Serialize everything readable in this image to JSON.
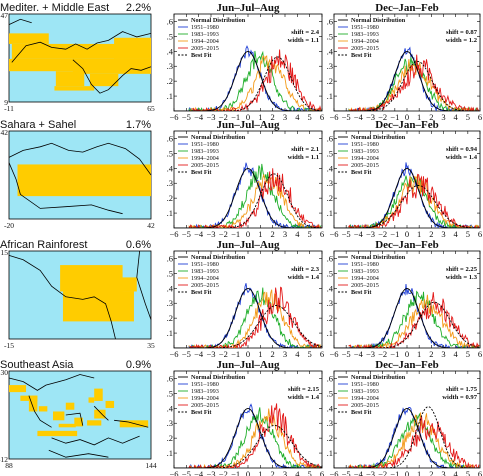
{
  "legend": [
    "Normal Distribution",
    "1951–1980",
    "1983–1993",
    "1994–2004",
    "2005–2015",
    "Best Fit"
  ],
  "colors": {
    "normal": "#000000",
    "p1": "#1f3fd6",
    "p2": "#1fae2a",
    "p3": "#f39a1a",
    "p4": "#e31a1a",
    "fit": "#000000",
    "land": "#ffcc00",
    "sea": "#9ee6f5"
  },
  "season_labels": [
    "Jun–Jul–Aug",
    "Dec–Jan–Feb"
  ],
  "regions": [
    {
      "name": "Mediter. + Middle East",
      "pct": "2.2%",
      "map": {
        "lat_top": "47",
        "lat_bot": "9",
        "lon_left": "-11",
        "lon_right": "65"
      },
      "jja": {
        "shift_label": "shift = 2.4",
        "width_label": "width = 1.1"
      },
      "djf": {
        "shift_label": "shift = 0.87",
        "width_label": "width = 1.2"
      }
    },
    {
      "name": "Sahara + Sahel",
      "pct": "1.7%",
      "map": {
        "lat_top": "42",
        "lat_bot": "",
        "lon_left": "-20",
        "lon_right": "42"
      },
      "jja": {
        "shift_label": "shift = 2.1",
        "width_label": "width = 1.1"
      },
      "djf": {
        "shift_label": "shift = 0.94",
        "width_label": "width = 1.4"
      }
    },
    {
      "name": "African Rainforest",
      "pct": "0.6%",
      "map": {
        "lat_top": "15",
        "lat_bot": "",
        "lon_left": "-15",
        "lon_right": "35"
      },
      "jja": {
        "shift_label": "shift = 2.3",
        "width_label": "width = 1.4"
      },
      "djf": {
        "shift_label": "shift = 2.25",
        "width_label": "width = 1.3"
      }
    },
    {
      "name": "Southeast Asia",
      "pct": "0.9%",
      "map": {
        "lat_top": "30",
        "lat_bot": "-12",
        "lon_left": "88",
        "lon_right": "144"
      },
      "jja": {
        "shift_label": "shift = 2.15",
        "width_label": "width = 1.4"
      },
      "djf": {
        "shift_label": "shift = 1.75",
        "width_label": "width = 0.97"
      }
    }
  ],
  "chart_data": {
    "type": "line",
    "xlim": [
      -6,
      6
    ],
    "ylim": [
      0,
      0.65
    ],
    "xticks": [
      -6,
      -5,
      -4,
      -3,
      -2,
      -1,
      0,
      1,
      2,
      3,
      4,
      5,
      6
    ],
    "yticks": [
      ".1",
      ".2",
      ".3",
      ".4",
      ".5",
      ".6"
    ],
    "ytick_values": [
      0.1,
      0.2,
      0.3,
      0.4,
      0.5,
      0.6
    ],
    "periods": [
      "1951–1980",
      "1983–1993",
      "1994–2004",
      "2005–2015"
    ],
    "panels": [
      {
        "region": "Mediter. + Middle East",
        "season": "Jun–Jul–Aug",
        "shift": 2.4,
        "width": 1.1,
        "period_means": [
          0.0,
          0.9,
          1.8,
          2.6
        ]
      },
      {
        "region": "Mediter. + Middle East",
        "season": "Dec–Jan–Feb",
        "shift": 0.87,
        "width": 1.2,
        "period_means": [
          0.0,
          0.3,
          0.6,
          1.0
        ]
      },
      {
        "region": "Sahara + Sahel",
        "season": "Jun–Jul–Aug",
        "shift": 2.1,
        "width": 1.1,
        "period_means": [
          0.0,
          1.0,
          1.6,
          2.3
        ]
      },
      {
        "region": "Sahara + Sahel",
        "season": "Dec–Jan–Feb",
        "shift": 0.94,
        "width": 1.4,
        "period_means": [
          0.0,
          0.4,
          0.7,
          1.1
        ]
      },
      {
        "region": "African Rainforest",
        "season": "Jun–Jul–Aug",
        "shift": 2.3,
        "width": 1.4,
        "period_means": [
          0.0,
          1.0,
          1.7,
          2.4
        ]
      },
      {
        "region": "African Rainforest",
        "season": "Dec–Jan–Feb",
        "shift": 2.25,
        "width": 1.3,
        "period_means": [
          0.0,
          1.0,
          1.6,
          2.3
        ]
      },
      {
        "region": "Southeast Asia",
        "season": "Jun–Jul–Aug",
        "shift": 2.15,
        "width": 1.4,
        "period_means": [
          0.0,
          0.9,
          1.6,
          2.2
        ]
      },
      {
        "region": "Southeast Asia",
        "season": "Dec–Jan–Feb",
        "shift": 1.75,
        "width": 0.97,
        "period_means": [
          0.0,
          0.7,
          1.2,
          1.8
        ]
      }
    ]
  }
}
